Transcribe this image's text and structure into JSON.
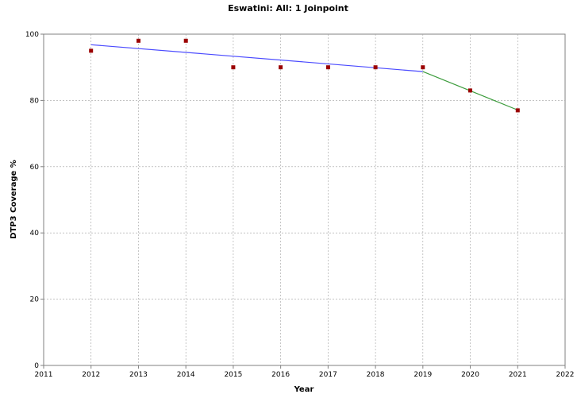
{
  "chart_data": {
    "type": "scatter",
    "title": "Eswatini: All: 1 Joinpoint",
    "xlabel": "Year",
    "ylabel": "DTP3 Coverage %",
    "xlim": [
      2011,
      2022
    ],
    "ylim": [
      0,
      100
    ],
    "x_ticks": [
      2011,
      2012,
      2013,
      2014,
      2015,
      2016,
      2017,
      2018,
      2019,
      2020,
      2021,
      2022
    ],
    "y_ticks": [
      0,
      20,
      40,
      60,
      80,
      100
    ],
    "grid": true,
    "legend": "none",
    "observed": {
      "color": "#9b0000",
      "x": [
        2012,
        2013,
        2014,
        2015,
        2016,
        2017,
        2018,
        2019,
        2020,
        2021
      ],
      "y": [
        95,
        98,
        98,
        90,
        90,
        90,
        90,
        90,
        83,
        77
      ]
    },
    "segments": [
      {
        "color": "#4a4aff",
        "x": [
          2012,
          2019
        ],
        "y": [
          96.8,
          88.7
        ]
      },
      {
        "color": "#3c9c3c",
        "x": [
          2019,
          2021
        ],
        "y": [
          88.7,
          77.1
        ]
      }
    ]
  }
}
